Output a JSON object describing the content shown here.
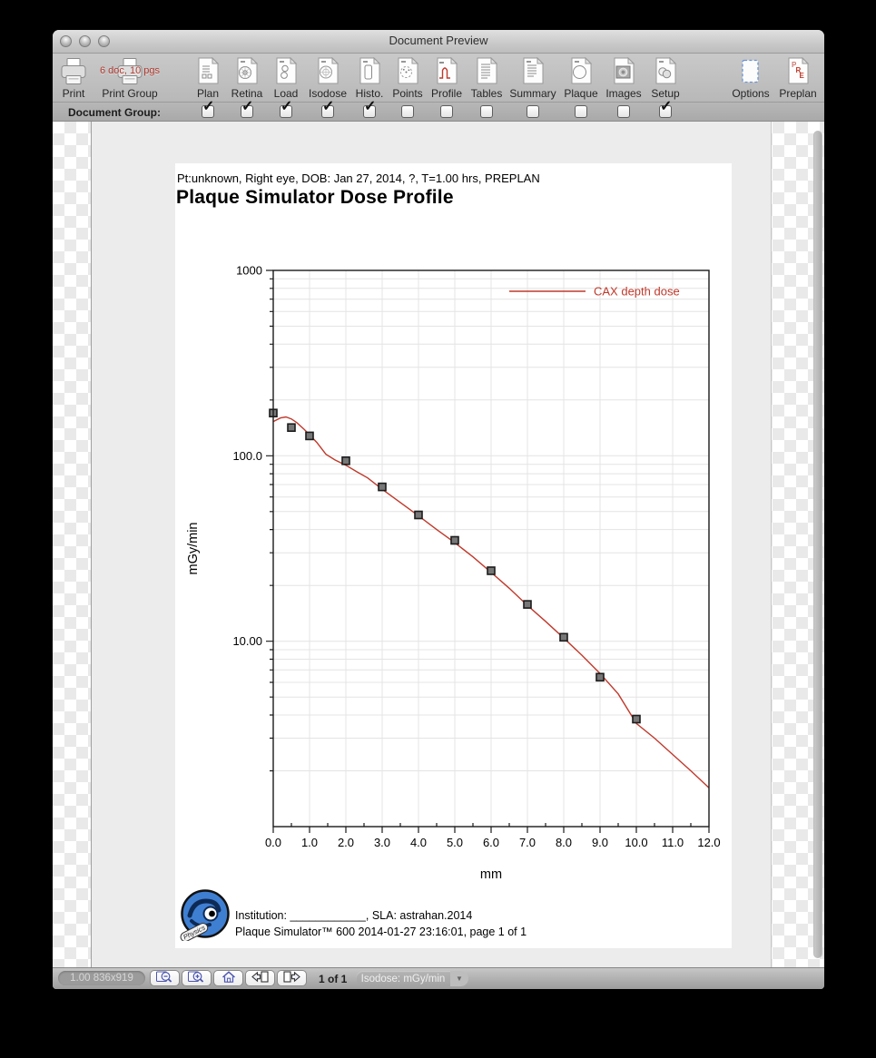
{
  "window": {
    "title": "Document Preview"
  },
  "toolbar": {
    "print_label": "Print",
    "print_group_label": "Print Group",
    "print_group_badge": "6 doc, 10 pgs",
    "group_row_label": "Document Group:",
    "doc_buttons": [
      {
        "label": "Plan",
        "icon": "plan-doc-icon",
        "checked": true
      },
      {
        "label": "Retina",
        "icon": "retina-doc-icon",
        "checked": true
      },
      {
        "label": "Load",
        "icon": "load-doc-icon",
        "checked": true
      },
      {
        "label": "Isodose",
        "icon": "isodose-doc-icon",
        "checked": true
      },
      {
        "label": "Histo.",
        "icon": "histogram-doc-icon",
        "checked": true
      },
      {
        "label": "Points",
        "icon": "points-doc-icon",
        "checked": false
      },
      {
        "label": "Profile",
        "icon": "profile-doc-icon",
        "checked": false
      },
      {
        "label": "Tables",
        "icon": "tables-doc-icon",
        "checked": false
      },
      {
        "label": "Summary",
        "icon": "summary-doc-icon",
        "checked": false
      },
      {
        "label": "Plaque",
        "icon": "plaque-doc-icon",
        "checked": false
      },
      {
        "label": "Images",
        "icon": "images-doc-icon",
        "checked": false
      },
      {
        "label": "Setup",
        "icon": "setup-doc-icon",
        "checked": true
      }
    ],
    "options_label": "Options",
    "preplan_label": "Preplan"
  },
  "page": {
    "patient_line": "Pt:unknown, Right eye, DOB: Jan 27, 2014, ?, T=1.00 hrs, PREPLAN",
    "title": "Plaque Simulator Dose Profile",
    "footer_line1": "Institution: ____________, SLA: astrahan.2014",
    "footer_line2": "Plaque Simulator™ 600 2014-01-27 23:16:01, page 1 of 1",
    "logo_name": "Eye Physics"
  },
  "chart_data": {
    "type": "line",
    "title": "Plaque Simulator Dose Profile",
    "xlabel": "mm",
    "ylabel": "mGy/min",
    "xlim": [
      0,
      12
    ],
    "ylog": true,
    "ylim": [
      1,
      1000
    ],
    "grid": true,
    "x_tick_labels": [
      "0.0",
      "1.0",
      "2.0",
      "3.0",
      "4.0",
      "5.0",
      "6.0",
      "7.0",
      "8.0",
      "9.0",
      "10.0",
      "11.0",
      "12.0"
    ],
    "y_ticks": [
      {
        "value": 1000,
        "label": "1000"
      },
      {
        "value": 100,
        "label": "100.0"
      },
      {
        "value": 10,
        "label": "10.00"
      }
    ],
    "legend": {
      "position": "top-right",
      "entries": [
        {
          "label": "CAX depth dose",
          "color": "#c0392b"
        }
      ]
    },
    "series": [
      {
        "name": "CAX depth dose",
        "type": "line",
        "color": "#c0392b",
        "x": [
          0,
          0.2,
          0.35,
          0.5,
          0.65,
          0.85,
          1.0,
          1.2,
          1.45,
          1.7,
          2.0,
          2.3,
          2.6,
          3.0,
          3.5,
          4.0,
          4.5,
          5.0,
          5.5,
          6.0,
          6.5,
          7.0,
          7.5,
          8.0,
          8.5,
          9.0,
          9.5,
          10.0,
          10.5,
          11.0,
          11.5,
          12.0
        ],
        "y": [
          153,
          160,
          162,
          158,
          151,
          139,
          130,
          118,
          102,
          95,
          89,
          82,
          76,
          66,
          56,
          47.5,
          40,
          34,
          28.5,
          23.5,
          19.3,
          15.6,
          12.8,
          10.4,
          8.4,
          6.7,
          5.2,
          3.6,
          3.0,
          2.45,
          2.0,
          1.62
        ]
      },
      {
        "name": "measured points",
        "type": "scatter",
        "marker": "square",
        "color": "#777777",
        "x": [
          0,
          0.5,
          1.0,
          2.0,
          3.0,
          4.0,
          5.0,
          6.0,
          7.0,
          8.0,
          9.0,
          10.0
        ],
        "y": [
          170,
          142,
          128,
          94,
          68,
          48,
          35,
          24,
          15.8,
          10.5,
          6.4,
          3.8
        ]
      }
    ]
  },
  "statusbar": {
    "zoom_info": "1.00 836x919",
    "buttons": [
      {
        "icon": "zoom-out-icon"
      },
      {
        "icon": "zoom-in-icon"
      },
      {
        "icon": "home-icon"
      },
      {
        "icon": "prev-page-icon"
      },
      {
        "icon": "next-page-icon"
      }
    ],
    "page_indicator": "1 of 1",
    "isodose_dropdown": "Isodose: mGy/min"
  },
  "colors": {
    "accent_red": "#c0392b",
    "page_bg": "#ffffff",
    "doc_area_bg": "#ececec"
  }
}
